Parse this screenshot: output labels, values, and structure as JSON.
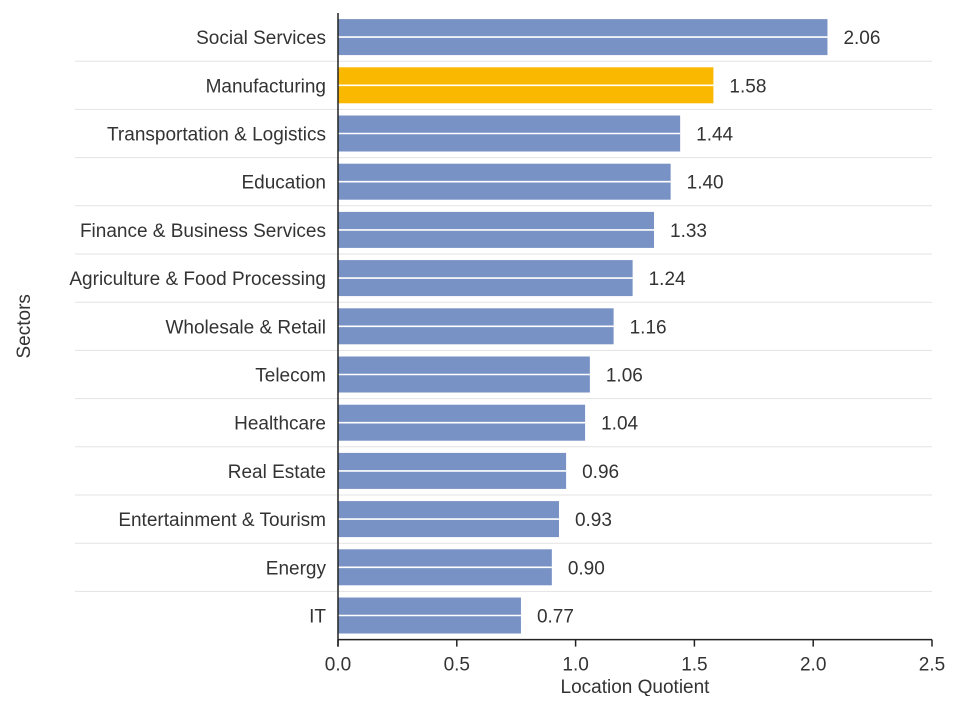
{
  "chart_data": {
    "type": "bar",
    "orientation": "horizontal",
    "xlabel": "Location Quotient",
    "ylabel": "Sectors",
    "xlim": [
      0,
      2.5
    ],
    "xticks": [
      "0.0",
      "0.5",
      "1.0",
      "1.5",
      "2.0",
      "2.5"
    ],
    "categories": [
      "Social Services",
      "Manufacturing",
      "Transportation & Logistics",
      "Education",
      "Finance & Business Services",
      "Agriculture & Food Processing",
      "Wholesale & Retail",
      "Telecom",
      "Healthcare",
      "Real Estate",
      "Entertainment & Tourism",
      "Energy",
      "IT"
    ],
    "values": [
      2.06,
      1.58,
      1.44,
      1.4,
      1.33,
      1.24,
      1.16,
      1.06,
      1.04,
      0.96,
      0.93,
      0.9,
      0.77
    ],
    "value_labels": [
      "2.06",
      "1.58",
      "1.44",
      "1.40",
      "1.33",
      "1.24",
      "1.16",
      "1.06",
      "1.04",
      "0.96",
      "0.93",
      "0.90",
      "0.77"
    ],
    "highlight_category": "Manufacturing",
    "colors": {
      "bar": "#7892c5",
      "highlight": "#fbb800",
      "grid": "#e3e3e3",
      "axis": "#222222",
      "text": "#333333"
    },
    "grid": true,
    "legend": "none"
  }
}
